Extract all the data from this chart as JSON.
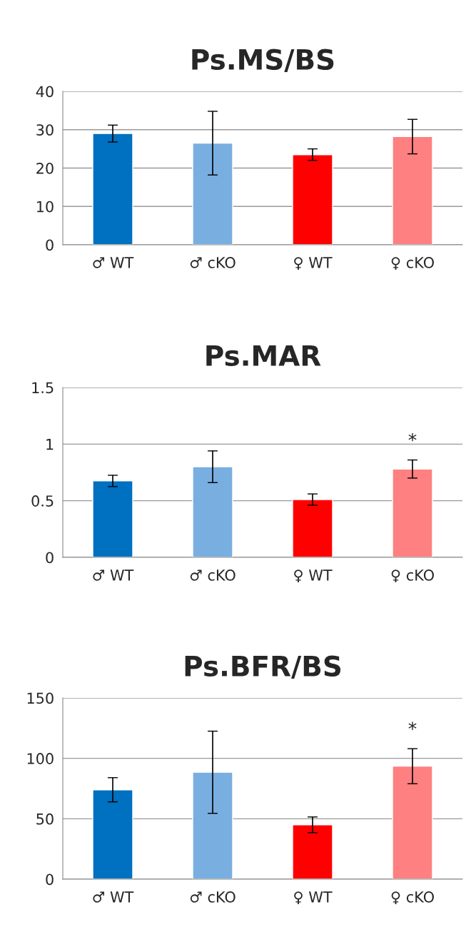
{
  "chart_data": [
    {
      "type": "bar",
      "title": "Ps.MS/BS",
      "categories": [
        "♂ WT",
        "♂ cKO",
        "♀ WT",
        "♀ cKO"
      ],
      "values": [
        29.0,
        26.5,
        23.5,
        28.2
      ],
      "errors": [
        2.2,
        8.3,
        1.5,
        4.5
      ],
      "colors": [
        "#0070c0",
        "#79aee0",
        "#ff0000",
        "#ff8080"
      ],
      "ylim": [
        0,
        40
      ],
      "yticks": [
        0,
        10,
        20,
        30,
        40
      ],
      "grid": "y"
    },
    {
      "type": "bar",
      "title": "Ps.MAR",
      "categories": [
        "♂ WT",
        "♂ cKO",
        "♀ WT",
        "♀ cKO"
      ],
      "values": [
        0.675,
        0.8,
        0.51,
        0.78
      ],
      "errors": [
        0.05,
        0.14,
        0.05,
        0.08
      ],
      "colors": [
        "#0070c0",
        "#79aee0",
        "#ff0000",
        "#ff8080"
      ],
      "ylim": [
        0,
        1.5
      ],
      "yticks": [
        0,
        0.5,
        1,
        1.5
      ],
      "grid": "y",
      "annotations": [
        "*"
      ]
    },
    {
      "type": "bar",
      "title": "Ps.BFR/BS",
      "categories": [
        "♂ WT",
        "♂ cKO",
        "♀ WT",
        "♀ cKO"
      ],
      "values": [
        74,
        88.5,
        45,
        93.5
      ],
      "errors": [
        10,
        34,
        6.5,
        14.5
      ],
      "colors": [
        "#0070c0",
        "#79aee0",
        "#ff0000",
        "#ff8080"
      ],
      "ylim": [
        0,
        150
      ],
      "yticks": [
        0,
        50,
        100,
        150
      ],
      "grid": "y",
      "annotations": [
        "*"
      ]
    }
  ]
}
